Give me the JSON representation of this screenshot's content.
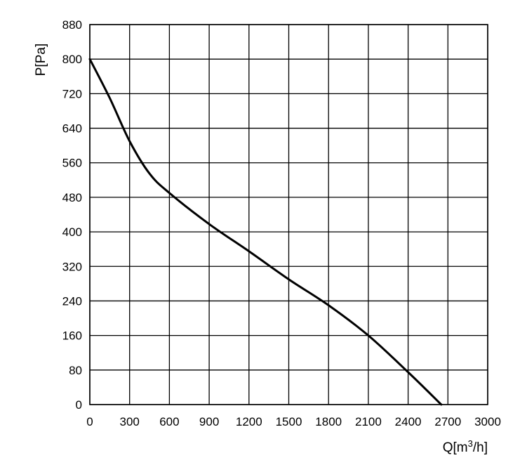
{
  "chart_data": {
    "type": "line",
    "xlabel": "Q[m³/h]",
    "ylabel": "P[Pa]",
    "xlim": [
      0,
      3000
    ],
    "ylim": [
      0,
      880
    ],
    "xticks": [
      0,
      300,
      600,
      900,
      1200,
      1500,
      1800,
      2100,
      2400,
      2700,
      3000
    ],
    "yticks": [
      0,
      80,
      160,
      240,
      320,
      400,
      480,
      560,
      640,
      720,
      800,
      880
    ],
    "grid": true,
    "series": [
      {
        "x": [
          0,
          150,
          300,
          450,
          600,
          900,
          1200,
          1500,
          1800,
          2100,
          2400,
          2650
        ],
        "y": [
          800,
          710,
          610,
          535,
          490,
          418,
          355,
          290,
          230,
          160,
          75,
          0
        ]
      }
    ]
  }
}
